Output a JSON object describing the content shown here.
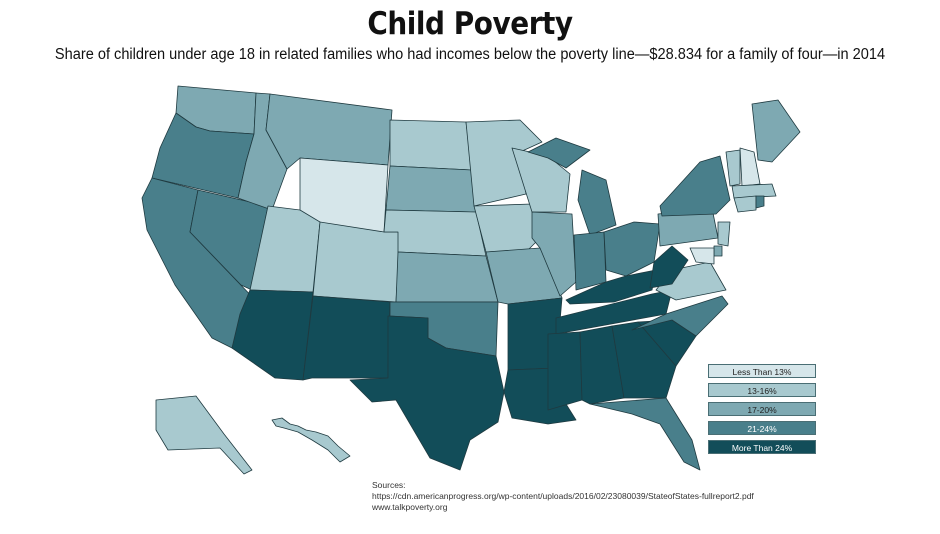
{
  "header": {
    "title": "Child Poverty",
    "subtitle": "Share of children under age 18 in related families who had incomes below the poverty line—$28.834 for a family of four—in 2014"
  },
  "legend": {
    "items": [
      {
        "label": "Less Than 13%",
        "color": "#d6e6ea",
        "text_color": "#222222"
      },
      {
        "label": "13-16%",
        "color": "#a8c9cf",
        "text_color": "#222222"
      },
      {
        "label": "17-20%",
        "color": "#7ea9b2",
        "text_color": "#222222"
      },
      {
        "label": "21-24%",
        "color": "#497f8b",
        "text_color": "#ffffff"
      },
      {
        "label": "More Than 24%",
        "color": "#124d59",
        "text_color": "#ffffff"
      }
    ]
  },
  "sources": {
    "label": "Sources:",
    "line1": "https://cdn.americanprogress.org/wp-content/uploads/2016/02/23080039/StateofStates-fullreport2.pdf",
    "line2": "www.talkpoverty.org"
  },
  "map_data": {
    "WA": 2,
    "OR": 3,
    "CA": 3,
    "NV": 3,
    "ID": 2,
    "MT": 2,
    "WY": 0,
    "UT": 1,
    "AZ": 4,
    "CO": 1,
    "NM": 4,
    "ND": 1,
    "SD": 2,
    "NE": 1,
    "KS": 2,
    "OK": 3,
    "TX": 4,
    "MN": 1,
    "IA": 1,
    "MO": 2,
    "AR": 4,
    "LA": 4,
    "WI": 1,
    "IL": 2,
    "MI": 3,
    "IN": 3,
    "OH": 3,
    "KY": 4,
    "TN": 4,
    "MS": 4,
    "AL": 4,
    "GA": 4,
    "FL": 3,
    "SC": 4,
    "NC": 3,
    "VA": 1,
    "WV": 4,
    "PA": 2,
    "NY": 3,
    "VT": 1,
    "NH": 0,
    "ME": 2,
    "MA": 1,
    "CT": 1,
    "RI": 3,
    "NJ": 1,
    "DE": 2,
    "MD": 0,
    "AK": 1,
    "HI": 1
  }
}
